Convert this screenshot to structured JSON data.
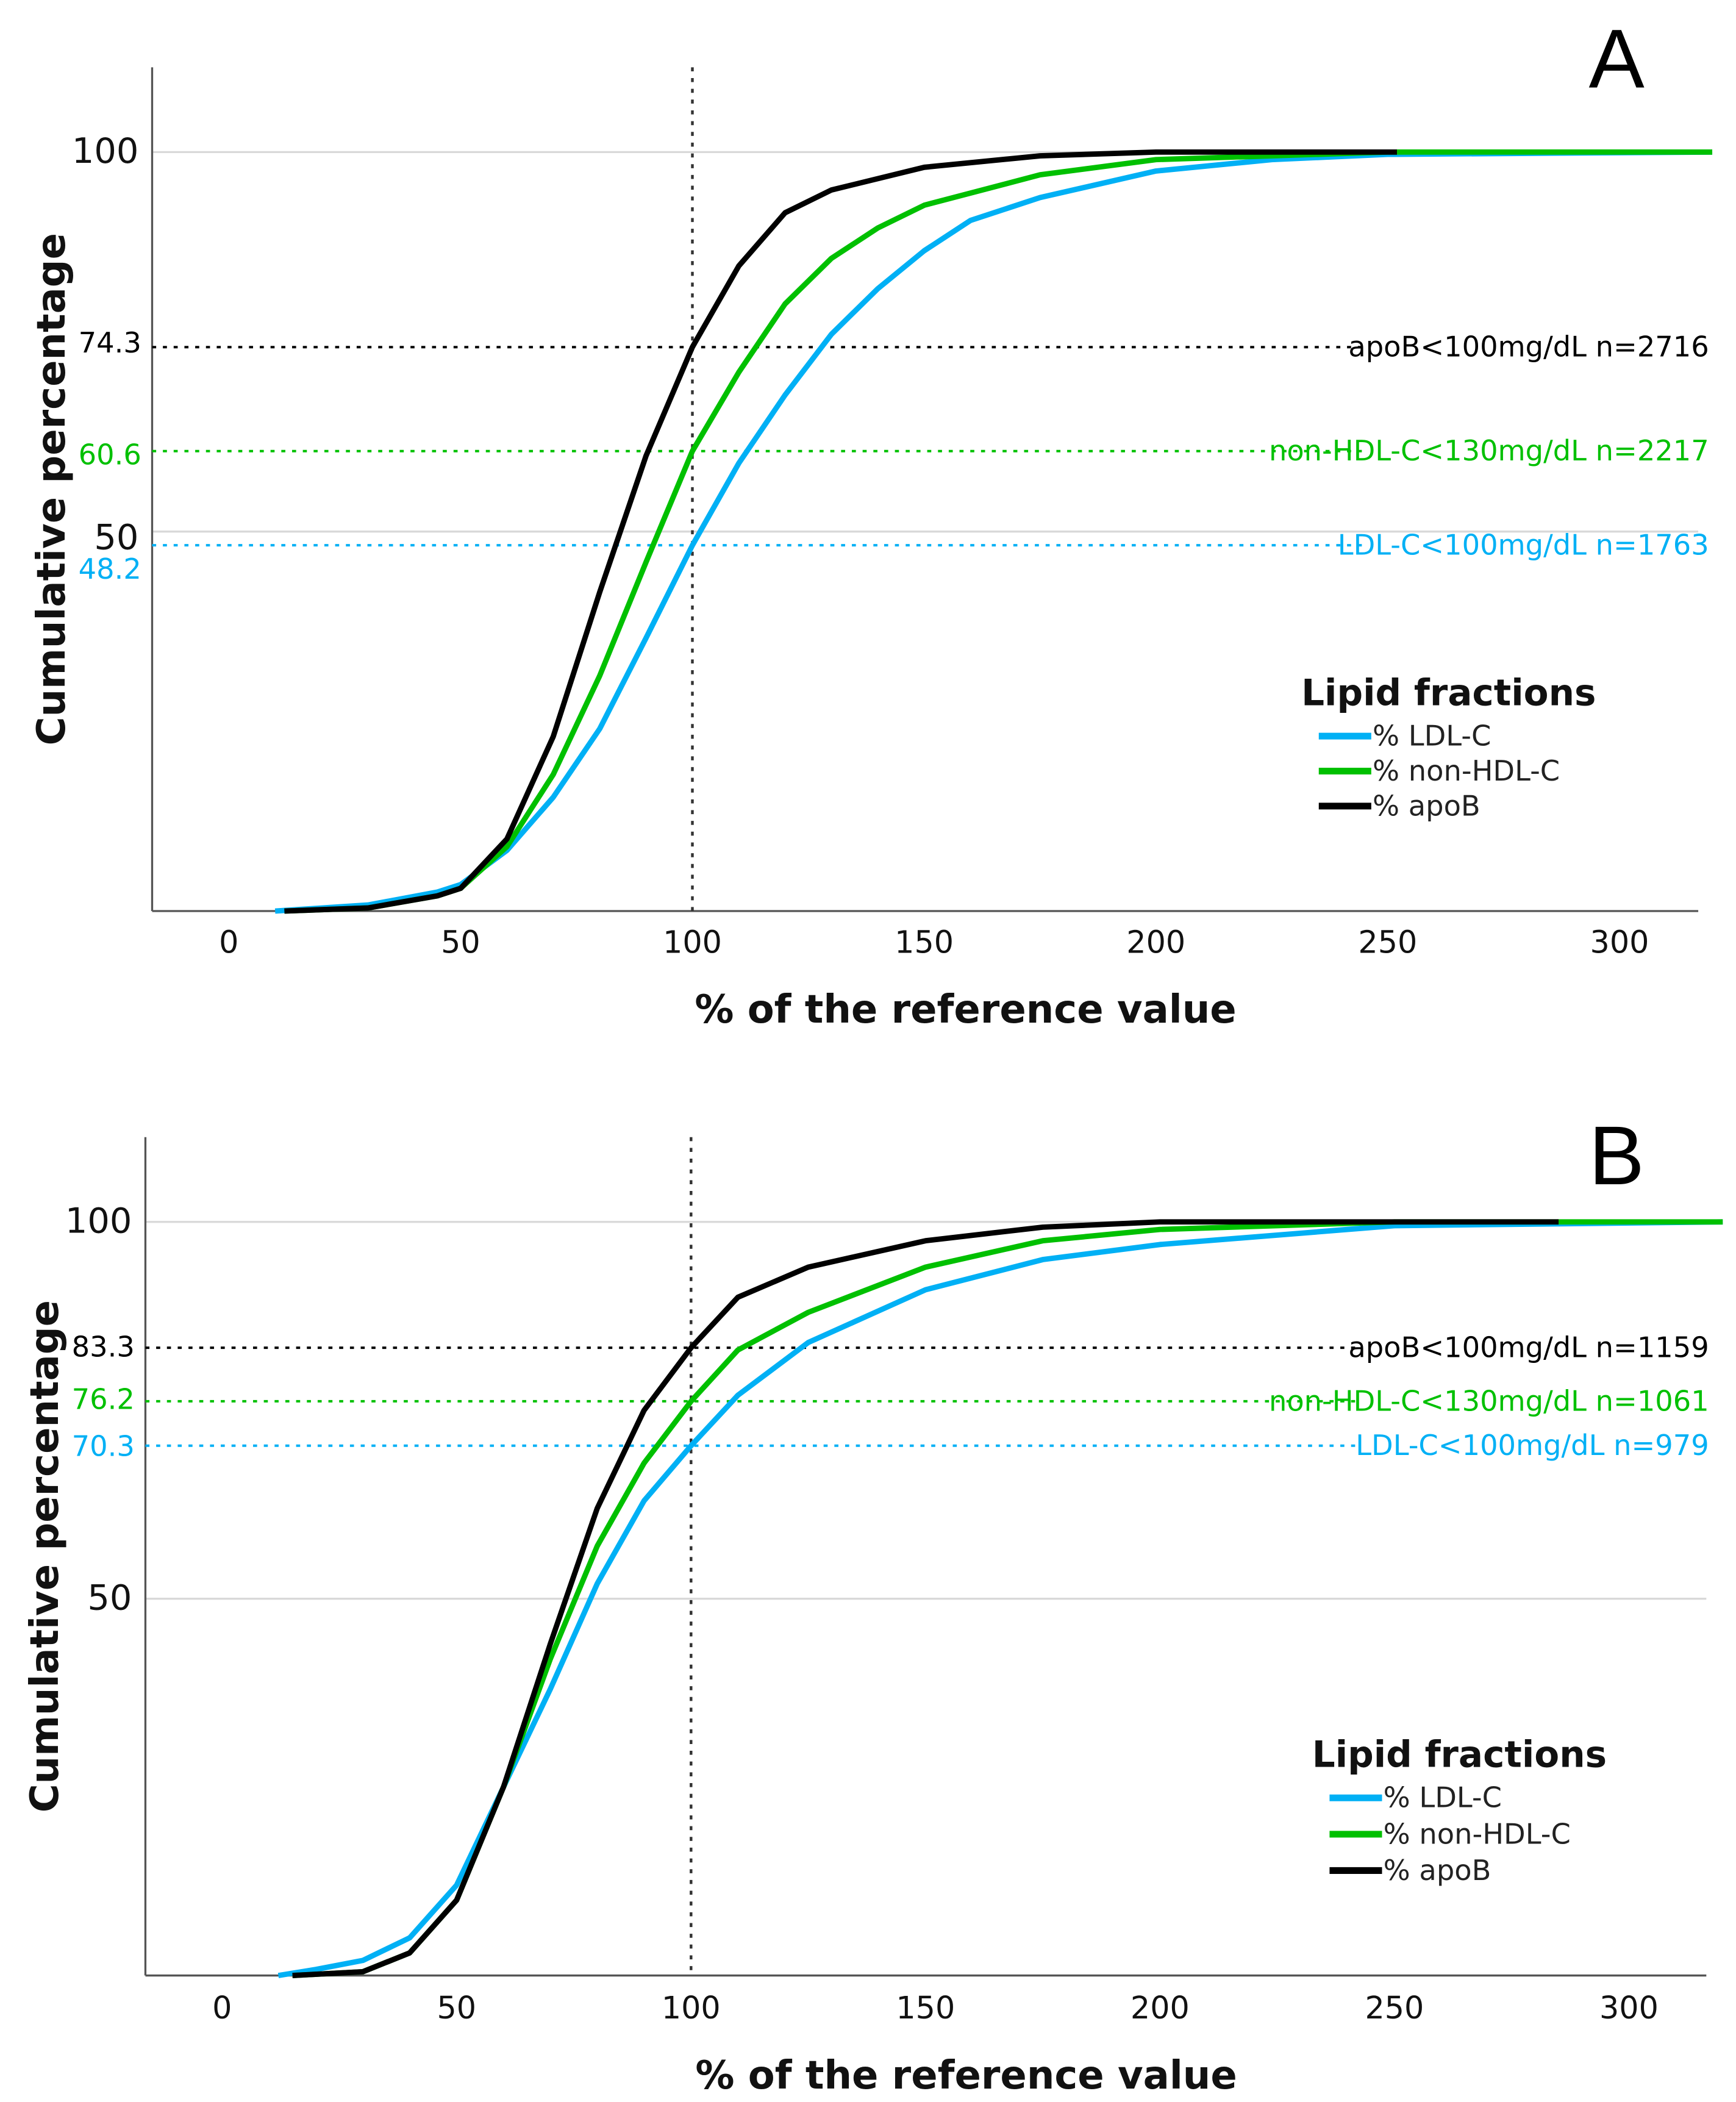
{
  "colors": {
    "ldl": "#00b0f5",
    "nonhdl": "#00c000",
    "apob": "#000000",
    "grid": "#d9d9d9",
    "axis": "#555555"
  },
  "chart_data": [
    {
      "type": "line",
      "panel": "A",
      "xlabel": "% of the reference value",
      "ylabel": "Cumulative percentage",
      "xlim": [
        0,
        320
      ],
      "ylim": [
        0,
        100
      ],
      "xticks": [
        "0",
        "50",
        "100",
        "150",
        "200",
        "250",
        "300"
      ],
      "xtick_values": [
        0,
        50,
        100,
        150,
        200,
        250,
        300
      ],
      "yticks": [
        {
          "label": "100",
          "value": 100
        },
        {
          "label": "50",
          "value": 50
        }
      ],
      "vertical_reference": 100,
      "reference_lines": [
        {
          "value": 74.3,
          "label": "74.3",
          "text": "apoB<100mg/dL n=2716",
          "series": "apob"
        },
        {
          "value": 60.6,
          "label": "60.6",
          "text": "non-HDL-C<130mg/dL n=2217",
          "series": "nonhdl"
        },
        {
          "value": 48.2,
          "label": "48.2",
          "text": "LDL-C<100mg/dL n=1763",
          "series": "ldl"
        }
      ],
      "legend": {
        "title": "Lipid fractions",
        "placement": "right"
      },
      "series": [
        {
          "key": "ldl",
          "name": "% LDL-C",
          "x": [
            10,
            30,
            45,
            50,
            60,
            70,
            80,
            90,
            100,
            110,
            120,
            130,
            140,
            150,
            160,
            175,
            200,
            225,
            250,
            320
          ],
          "y": [
            0,
            0.8,
            2.5,
            3.5,
            8,
            15,
            24,
            36,
            48.2,
            59,
            68,
            76,
            82,
            87,
            91,
            94,
            97.5,
            99,
            99.7,
            100
          ]
        },
        {
          "key": "nonhdl",
          "name": "% non-HDL-C",
          "x": [
            12,
            30,
            45,
            50,
            60,
            70,
            80,
            90,
            100,
            110,
            120,
            130,
            140,
            150,
            175,
            200,
            250,
            320
          ],
          "y": [
            0,
            0.4,
            2,
            3,
            8.5,
            18,
            31,
            46,
            60.6,
            71,
            80,
            86,
            90,
            93,
            97,
            99,
            100,
            100
          ]
        },
        {
          "key": "apob",
          "name": "% apoB",
          "x": [
            12,
            30,
            45,
            50,
            60,
            70,
            80,
            90,
            100,
            110,
            120,
            130,
            150,
            175,
            200,
            252
          ],
          "y": [
            0,
            0.4,
            2,
            3,
            9.5,
            23,
            42,
            60,
            74.3,
            85,
            92,
            95,
            98,
            99.5,
            100,
            100
          ]
        }
      ]
    },
    {
      "type": "line",
      "panel": "B",
      "xlabel": "% of the reference value",
      "ylabel": "Cumulative percentage",
      "xlim": [
        0,
        320
      ],
      "ylim": [
        0,
        100
      ],
      "xticks": [
        "0",
        "50",
        "100",
        "150",
        "200",
        "250",
        "300"
      ],
      "xtick_values": [
        0,
        50,
        100,
        150,
        200,
        250,
        300
      ],
      "yticks": [
        {
          "label": "100",
          "value": 100
        },
        {
          "label": "50",
          "value": 50
        }
      ],
      "vertical_reference": 100,
      "reference_lines": [
        {
          "value": 83.3,
          "label": "83.3",
          "text": "apoB<100mg/dL n=1159",
          "series": "apob"
        },
        {
          "value": 76.2,
          "label": "76.2",
          "text": "non-HDL-C<130mg/dL n=1061",
          "series": "nonhdl"
        },
        {
          "value": 70.3,
          "label": "70.3",
          "text": "LDL-C<100mg/dL n=979",
          "series": "ldl"
        }
      ],
      "legend": {
        "title": "Lipid fractions",
        "placement": "right"
      },
      "series": [
        {
          "key": "ldl",
          "name": "% LDL-C",
          "x": [
            12,
            20,
            30,
            40,
            50,
            60,
            70,
            80,
            90,
            100,
            110,
            125,
            150,
            175,
            200,
            250,
            320
          ],
          "y": [
            0,
            0.8,
            2,
            5,
            12,
            25,
            38,
            52,
            63,
            70.3,
            77,
            84,
            91,
            95,
            97,
            99.5,
            100
          ]
        },
        {
          "key": "nonhdl",
          "name": "% non-HDL-C",
          "x": [
            15,
            30,
            40,
            50,
            60,
            70,
            80,
            90,
            100,
            110,
            125,
            150,
            175,
            200,
            250,
            320
          ],
          "y": [
            0,
            0.5,
            3,
            10,
            25,
            42,
            57,
            68,
            76.2,
            83,
            88,
            94,
            97.5,
            99,
            100,
            100
          ]
        },
        {
          "key": "apob",
          "name": "% apoB",
          "x": [
            15,
            30,
            40,
            50,
            60,
            70,
            80,
            90,
            100,
            110,
            125,
            150,
            175,
            200,
            285
          ],
          "y": [
            0,
            0.5,
            3,
            10,
            25,
            44,
            62,
            75,
            83.3,
            90,
            94,
            97.5,
            99.3,
            100,
            100
          ]
        }
      ]
    }
  ]
}
